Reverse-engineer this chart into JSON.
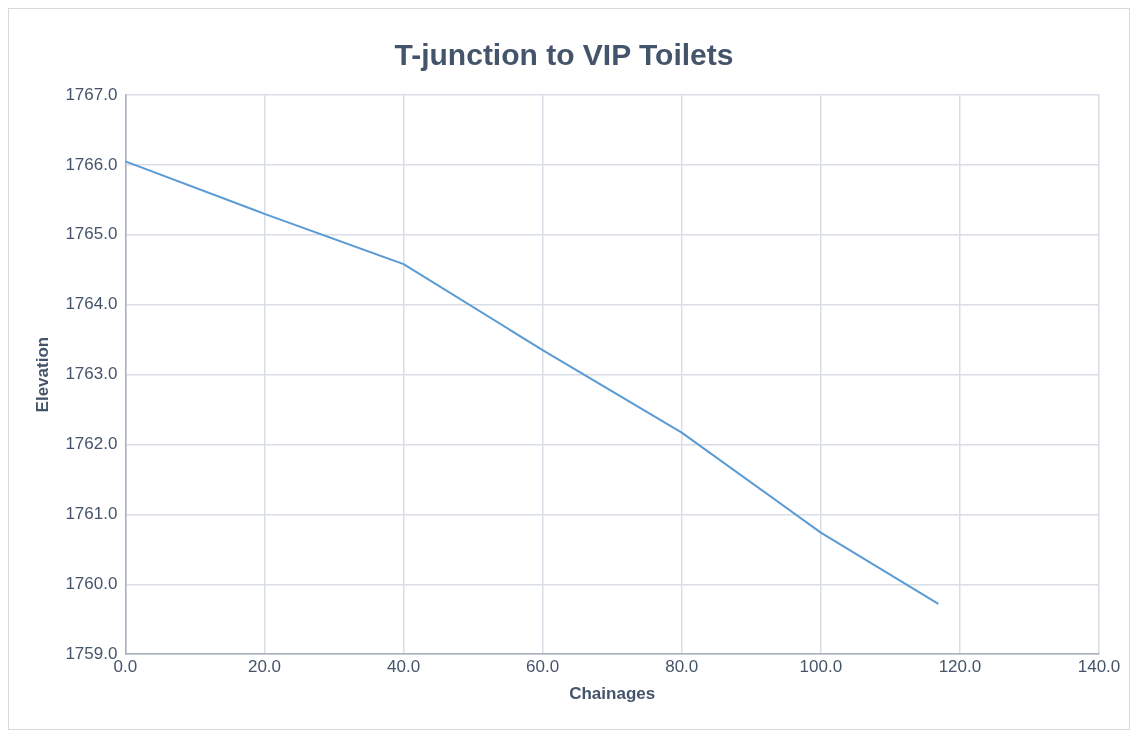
{
  "chart_data": {
    "type": "line",
    "title": "T-junction to VIP Toilets",
    "xlabel": "Chainages",
    "ylabel": "Elevation",
    "x": [
      0,
      20,
      40,
      60,
      80,
      100,
      116.9
    ],
    "series": [
      {
        "color": "#5b9bd5",
        "values": [
          1766.05,
          1765.3,
          1764.58,
          1763.35,
          1762.17,
          1760.74,
          1759.72
        ]
      }
    ],
    "xlim": [
      0,
      140
    ],
    "xticks": [
      {
        "value": 0,
        "label": "0.0"
      },
      {
        "value": 20,
        "label": "20.0"
      },
      {
        "value": 40,
        "label": "40.0"
      },
      {
        "value": 60,
        "label": "60.0"
      },
      {
        "value": 80,
        "label": "80.0"
      },
      {
        "value": 100,
        "label": "100.0"
      },
      {
        "value": 120,
        "label": "120.0"
      },
      {
        "value": 140,
        "label": "140.0"
      }
    ],
    "ylim": [
      1759,
      1767
    ],
    "yticks": [
      {
        "value": 1759,
        "label": "1759.0"
      },
      {
        "value": 1760,
        "label": "1760.0"
      },
      {
        "value": 1761,
        "label": "1761.0"
      },
      {
        "value": 1762,
        "label": "1762.0"
      },
      {
        "value": 1763,
        "label": "1763.0"
      },
      {
        "value": 1764,
        "label": "1764.0"
      },
      {
        "value": 1765,
        "label": "1765.0"
      },
      {
        "value": 1766,
        "label": "1766.0"
      },
      {
        "value": 1767,
        "label": "1767.0"
      }
    ],
    "grid": true,
    "legend": false,
    "marker": "none",
    "line_style": "solid"
  }
}
